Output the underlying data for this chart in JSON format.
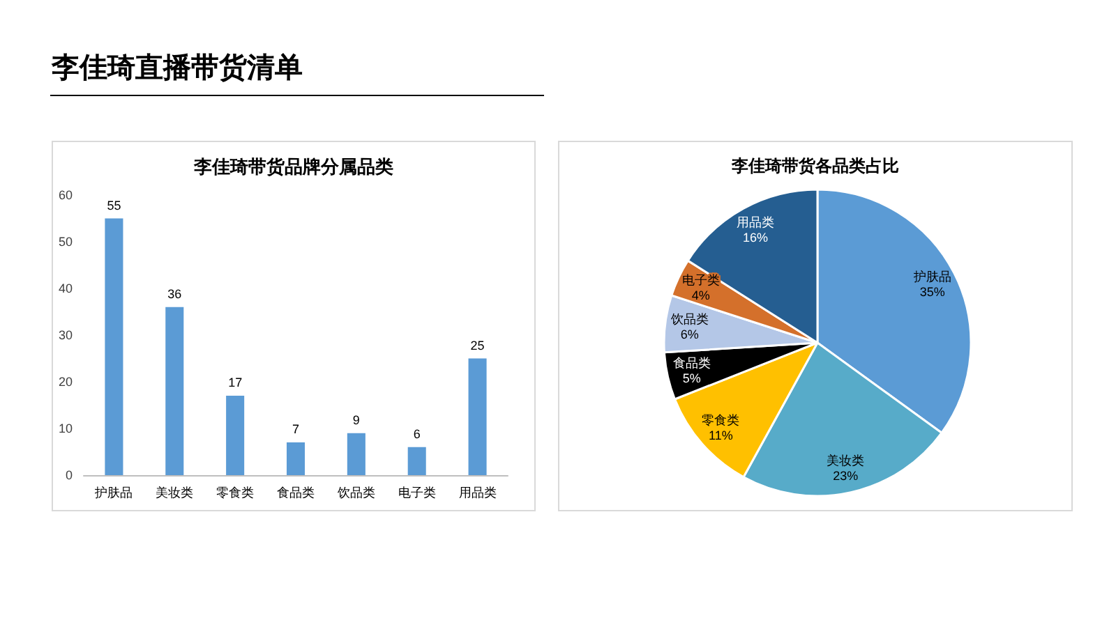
{
  "chart_data": [
    {
      "type": "other",
      "title": "李佳琦直播带货清单"
    },
    {
      "type": "bar",
      "title": "李佳琦带货品牌分属品类",
      "categories": [
        "护肤品",
        "美妆类",
        "零食类",
        "食品类",
        "饮品类",
        "电子类",
        "用品类"
      ],
      "values": [
        55,
        36,
        17,
        7,
        9,
        6,
        25
      ],
      "color": "#5b9bd5",
      "ylim": [
        0,
        60
      ],
      "yticks": [
        0,
        10,
        20,
        30,
        40,
        50,
        60
      ],
      "grid": false,
      "legend": false,
      "data_labels": true
    },
    {
      "type": "pie",
      "title": "李佳琦带货各品类占比",
      "categories": [
        "护肤品",
        "美妆类",
        "零食类",
        "食品类",
        "饮品类",
        "电子类",
        "用品类"
      ],
      "values": [
        35,
        23,
        11,
        5,
        6,
        4,
        16
      ],
      "colors": [
        "#5b9bd5",
        "#57abc9",
        "#ffc000",
        "#000000",
        "#b4c7e7",
        "#d4702b",
        "#255e91"
      ],
      "value_labels": [
        "35%",
        "23%",
        "11%",
        "5%",
        "6%",
        "4%",
        "16%"
      ],
      "legend": false
    }
  ]
}
